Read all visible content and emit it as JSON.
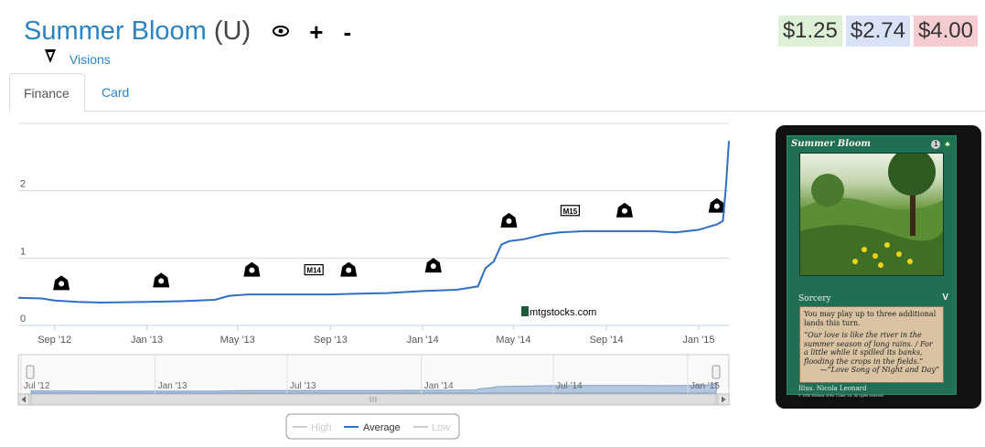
{
  "header": {
    "card_name": "Summer Bloom",
    "rarity": "(U)",
    "watch_icon": "eye-icon",
    "add_label": "+",
    "remove_label": "-"
  },
  "set": {
    "name": "Visions",
    "icon": "visions-set-icon"
  },
  "prices": {
    "low": "$1.25",
    "avg": "$2.74",
    "high": "$4.00",
    "colors": {
      "low": "#dff0d8",
      "avg": "#d9e2f7",
      "high": "#f5cdd0"
    }
  },
  "tabs": [
    {
      "label": "Finance",
      "active": true
    },
    {
      "label": "Card",
      "active": false
    }
  ],
  "watermark": "mtgstocks.com",
  "legend": {
    "high": "High",
    "average": "Average",
    "low": "Low",
    "placement": "bottom-center"
  },
  "navigator_labels": [
    "Jul '12",
    "Jan '13",
    "Jul '13",
    "Jan '14",
    "Jul '14",
    "Jan '15"
  ],
  "chart_data": {
    "type": "line",
    "title": "",
    "xlabel": "",
    "ylabel": "",
    "x_range": [
      "2012-07-15",
      "2015-02-10"
    ],
    "ylim": [
      0,
      3
    ],
    "y_ticks": [
      "0",
      "1",
      "2"
    ],
    "x_tick_labels": [
      "Sep '12",
      "Jan '13",
      "May '13",
      "Sep '13",
      "Jan '14",
      "May '14",
      "Sep '14",
      "Jan '15"
    ],
    "grid": true,
    "series": [
      {
        "name": "Average",
        "color": "#2f6fc0",
        "visible": true,
        "points": [
          [
            "2012-07-15",
            0.41
          ],
          [
            "2012-08-15",
            0.4
          ],
          [
            "2012-09-01",
            0.37
          ],
          [
            "2012-10-01",
            0.35
          ],
          [
            "2012-11-01",
            0.34
          ],
          [
            "2013-01-01",
            0.35
          ],
          [
            "2013-02-15",
            0.36
          ],
          [
            "2013-04-01",
            0.38
          ],
          [
            "2013-04-20",
            0.44
          ],
          [
            "2013-05-15",
            0.46
          ],
          [
            "2013-07-01",
            0.46
          ],
          [
            "2013-09-01",
            0.46
          ],
          [
            "2013-10-01",
            0.47
          ],
          [
            "2013-11-15",
            0.48
          ],
          [
            "2014-01-01",
            0.51
          ],
          [
            "2014-02-15",
            0.53
          ],
          [
            "2014-03-15",
            0.58
          ],
          [
            "2014-03-25",
            0.85
          ],
          [
            "2014-04-05",
            0.95
          ],
          [
            "2014-04-15",
            1.2
          ],
          [
            "2014-04-25",
            1.25
          ],
          [
            "2014-05-15",
            1.28
          ],
          [
            "2014-06-10",
            1.35
          ],
          [
            "2014-07-01",
            1.38
          ],
          [
            "2014-08-01",
            1.4
          ],
          [
            "2014-09-01",
            1.4
          ],
          [
            "2014-10-01",
            1.4
          ],
          [
            "2014-11-01",
            1.4
          ],
          [
            "2014-12-01",
            1.38
          ],
          [
            "2015-01-01",
            1.42
          ],
          [
            "2015-01-25",
            1.5
          ],
          [
            "2015-02-02",
            1.55
          ],
          [
            "2015-02-06",
            2.05
          ],
          [
            "2015-02-10",
            2.74
          ]
        ]
      },
      {
        "name": "High",
        "color": "#bbbbbb",
        "visible": false,
        "points": []
      },
      {
        "name": "Low",
        "color": "#bbbbbb",
        "visible": false,
        "points": []
      }
    ],
    "annotations": [
      {
        "x": "2012-09-10",
        "y": 0.62,
        "icon": "set-symbol-icon"
      },
      {
        "x": "2013-01-20",
        "y": 0.66,
        "icon": "set-symbol-icon"
      },
      {
        "x": "2013-05-20",
        "y": 0.82,
        "icon": "set-symbol-icon"
      },
      {
        "x": "2013-08-10",
        "y": 0.82,
        "icon": "m14-set-icon",
        "label": "M14"
      },
      {
        "x": "2013-09-25",
        "y": 0.82,
        "icon": "set-symbol-icon"
      },
      {
        "x": "2014-01-15",
        "y": 0.88,
        "icon": "set-symbol-icon"
      },
      {
        "x": "2014-04-25",
        "y": 1.55,
        "icon": "set-symbol-icon"
      },
      {
        "x": "2014-07-15",
        "y": 1.7,
        "icon": "m15-set-icon",
        "label": "M15"
      },
      {
        "x": "2014-09-25",
        "y": 1.7,
        "icon": "set-symbol-icon"
      },
      {
        "x": "2015-01-25",
        "y": 1.77,
        "icon": "set-symbol-icon"
      }
    ]
  },
  "card_image": {
    "name": "Summer Bloom",
    "cost": "1",
    "type_line": "Sorcery",
    "rules_text": "You may play up to three additional lands this turn.",
    "flavor_text": "“Our love is like the river in the summer season of long rains. / For a little while it spilled its banks, flooding the crops in the fields.”",
    "flavor_attribution": "—“Love Song of Night and Day”",
    "illustrator": "Illus. Nicola Leonard",
    "copyright": "© 1996 Wizards of the Coast, Inc. All rights reserved.",
    "set_symbol": "V"
  }
}
